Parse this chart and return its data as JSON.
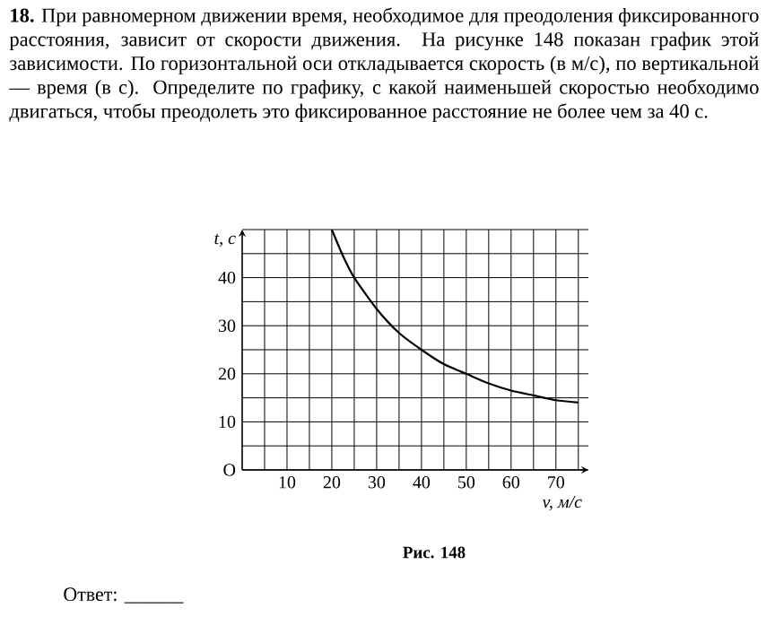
{
  "chart_data": {
    "type": "line",
    "title": "**18.** При равномерном движении время, необходимое для преодоления фиксированного расстояния, зависит от скорости движения. На рисунке 148 показан график этой зависимости. По горизонтальной оси откладывается скорость (в м/с), по вертикальной — время (в с). Определите по графику, с какой наименьшей скоростью необходимо двигаться, чтобы преодолеть это фиксированное расстояние не более чем за 40 с.",
    "xlabel": "v, м/с",
    "ylabel": "t, с",
    "annotations": [
      "Рис. 148",
      "Ответ: ______"
    ],
    "x": [
      20,
      22.5,
      25,
      30,
      35,
      40,
      45,
      50,
      55,
      60,
      65,
      70,
      75
    ],
    "series": [
      {
        "color": "#000000",
        "values": [
          50,
          44.5,
          40,
          33.5,
          28.5,
          25,
          22,
          20,
          18,
          16.5,
          15.5,
          14.5,
          14
        ]
      }
    ],
    "xlim": [
      0,
      75
    ],
    "ylim": [
      0,
      50
    ],
    "xticks": [
      {
        "value": 5,
        "label": null
      },
      10,
      {
        "value": 15,
        "label": null
      },
      20,
      {
        "value": 25,
        "label": null
      },
      30,
      {
        "value": 35,
        "label": null
      },
      40,
      {
        "value": 45,
        "label": null
      },
      50,
      {
        "value": 55,
        "label": null
      },
      60,
      {
        "value": 65,
        "label": null
      },
      70,
      {
        "value": 75,
        "label": null
      }
    ],
    "yticks": [
      {
        "value": 0,
        "label": "O"
      },
      {
        "value": 5,
        "label": null
      },
      10,
      {
        "value": 15,
        "label": null
      },
      20,
      {
        "value": 25,
        "label": null
      },
      30,
      {
        "value": 35,
        "label": null
      },
      40,
      {
        "value": 45,
        "label": null
      },
      {
        "value": 50,
        "label": null
      }
    ],
    "grid": true,
    "marker": "none",
    "line_style": "solid"
  }
}
